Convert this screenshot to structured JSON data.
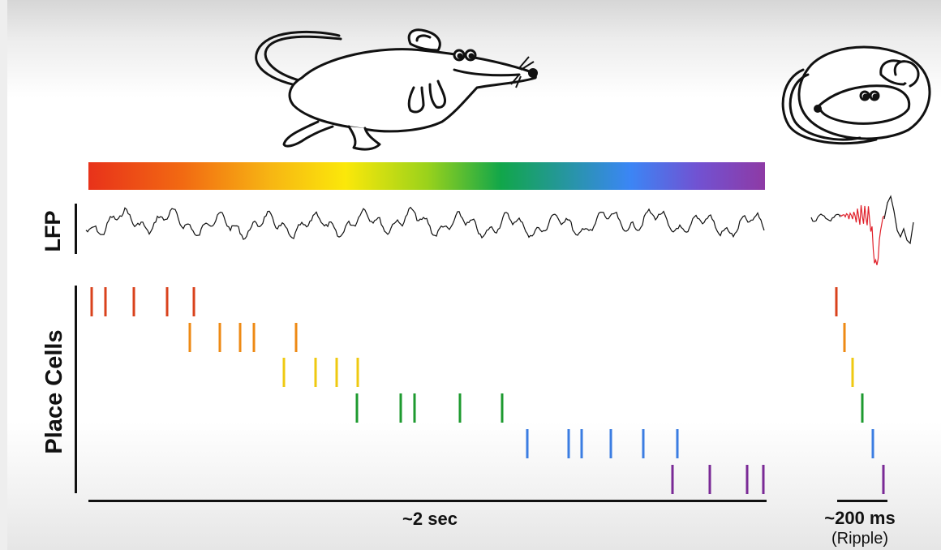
{
  "labels": {
    "lfp": "LFP",
    "place_cells": "Place Cells",
    "duration_awake": "~2 sec",
    "duration_sleep": "~200 ms",
    "sleep_event": "(Ripple)"
  },
  "colors": {
    "cell_colors": [
      "#d9421c",
      "#ee8a14",
      "#efc911",
      "#1d9a2f",
      "#3b7de2",
      "#7a2a96"
    ],
    "ripple_trace": "#e0202a",
    "trace": "#111111"
  },
  "icons": {
    "awake_mouse": "running-mouse-icon",
    "sleeping_mouse": "sleeping-mouse-icon"
  }
}
